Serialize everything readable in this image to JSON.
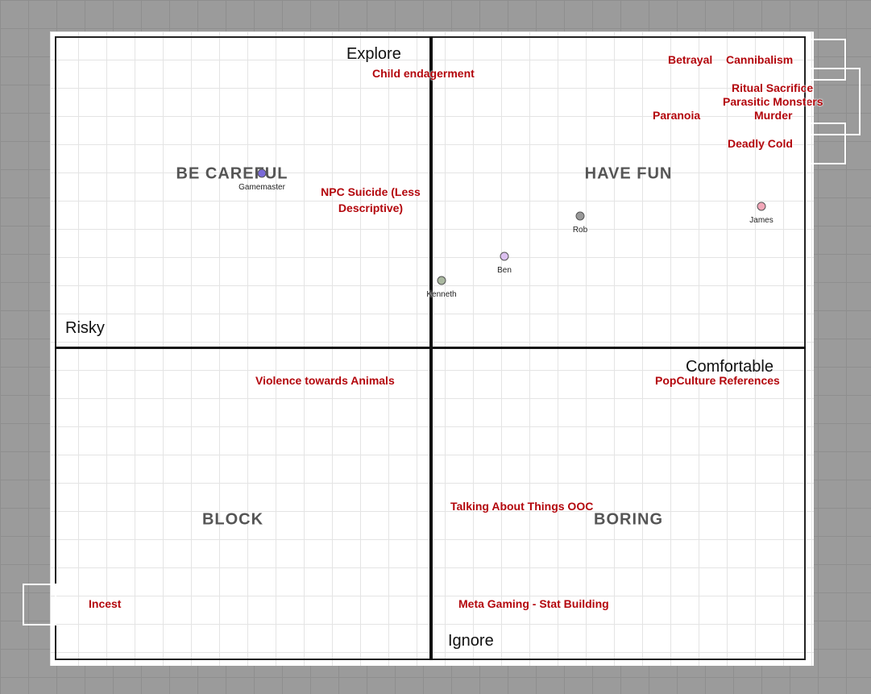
{
  "axes": {
    "top": "Explore",
    "bottom": "Ignore",
    "left": "Risky",
    "right": "Comfortable"
  },
  "quadrants": [
    "BE CAREFUL",
    "HAVE FUN",
    "BLOCK",
    "BORING"
  ],
  "topics": [
    "Betrayal",
    "Cannibalism",
    "Child endagerment",
    "Ritual Sacrifice",
    "Parasitic Monsters",
    "Paranoia",
    "Murder",
    "Deadly Cold",
    "NPC Suicide (Less Descriptive)",
    "Violence towards Animals",
    "PopCulture References",
    "Talking About Things OOC",
    "Incest",
    "Meta Gaming - Stat Building"
  ],
  "players": [
    "Gamemaster",
    "Rob",
    "James",
    "Ben",
    "Kenneth"
  ]
}
